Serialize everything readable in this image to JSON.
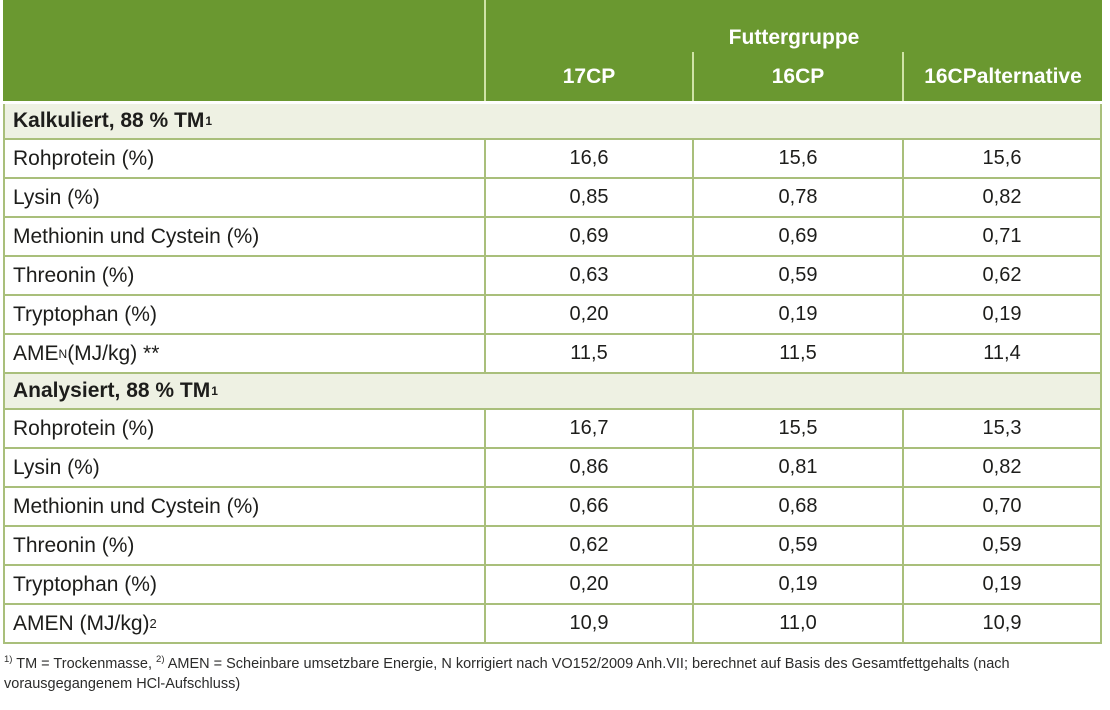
{
  "header": {
    "group_label": "Futtergruppe",
    "columns": [
      "17CP",
      "16CP",
      "16CPalternative"
    ]
  },
  "sections": [
    {
      "title": "Kalkuliert, 88 % TM",
      "title_sup": "1",
      "rows": [
        {
          "label": "Rohprotein (%)",
          "values": [
            "16,6",
            "15,6",
            "15,6"
          ]
        },
        {
          "label": "Lysin (%)",
          "values": [
            "0,85",
            "0,78",
            "0,82"
          ]
        },
        {
          "label": "Methionin und Cystein (%)",
          "values": [
            "0,69",
            "0,69",
            "0,71"
          ]
        },
        {
          "label": "Threonin (%)",
          "values": [
            "0,63",
            "0,59",
            "0,62"
          ]
        },
        {
          "label": "Tryptophan (%)",
          "values": [
            "0,20",
            "0,19",
            "0,19"
          ]
        },
        {
          "label_pre": "AME",
          "label_sub": "N",
          "label_post": " (MJ/kg) **",
          "values": [
            "11,5",
            "11,5",
            "11,4"
          ]
        }
      ]
    },
    {
      "title": "Analysiert, 88 % TM",
      "title_sup": "1",
      "rows": [
        {
          "label": "Rohprotein (%)",
          "values": [
            "16,7",
            "15,5",
            "15,3"
          ]
        },
        {
          "label": "Lysin (%)",
          "values": [
            "0,86",
            "0,81",
            "0,82"
          ]
        },
        {
          "label": "Methionin und Cystein (%)",
          "values": [
            "0,66",
            "0,68",
            "0,70"
          ]
        },
        {
          "label": "Threonin (%)",
          "values": [
            "0,62",
            "0,59",
            "0,59"
          ]
        },
        {
          "label": "Tryptophan (%)",
          "values": [
            "0,20",
            "0,19",
            "0,19"
          ]
        },
        {
          "label_pre": "AMEN (MJ/kg)",
          "label_sup": "2",
          "label_post": "",
          "values": [
            "10,9",
            "11,0",
            "10,9"
          ]
        }
      ]
    }
  ],
  "footnote": {
    "sup1": "1)",
    "part1": " TM = Trockenmasse, ",
    "sup2": "2)",
    "part2": " AMEN = Scheinbare umsetzbare Energie, N korrigiert nach VO152/2009 Anh.VII; berechnet auf Basis des Gesamtfettgehalts (nach vorausgegangenem HCl-Aufschluss)"
  },
  "colors": {
    "header_green": "#6a9830",
    "band_green": "#eef1e3",
    "border_green": "#a9bf7b",
    "divider_light": "#cfe3a6",
    "text_dark": "#1d1d1b"
  }
}
